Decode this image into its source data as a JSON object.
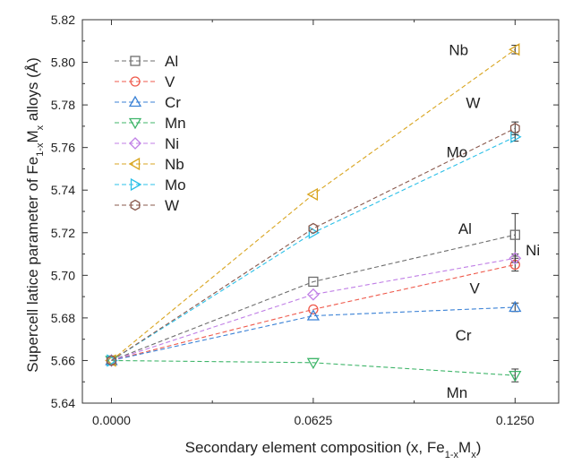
{
  "chart_data": {
    "type": "line",
    "xlabel": "Secondary element composition (x, Fe",
    "xlabel_sub1": "1-x",
    "xlabel_mid": "M",
    "xlabel_sub2": "x",
    "xlabel_end": ")",
    "ylabel": "Supercell latice parameter of Fe",
    "ylabel_sub1": "1-x",
    "ylabel_mid": "M",
    "ylabel_sub2": "x",
    "ylabel_end": " alloys (Å)",
    "x": [
      0.0,
      0.0625,
      0.125
    ],
    "x_tick_labels": [
      "0.0000",
      "0.0625",
      "0.1250"
    ],
    "xlim": [
      -0.009,
      0.1385
    ],
    "ylim": [
      5.64,
      5.82
    ],
    "y_ticks": [
      5.64,
      5.66,
      5.68,
      5.7,
      5.72,
      5.74,
      5.76,
      5.78,
      5.8,
      5.82
    ],
    "y_tick_labels": [
      "5.64",
      "5.66",
      "5.68",
      "5.70",
      "5.72",
      "5.74",
      "5.76",
      "5.78",
      "5.80",
      "5.82"
    ],
    "grid": false,
    "legend_position": "top-left",
    "series": [
      {
        "name": "Al",
        "color": "#6e6e6e",
        "marker": "square",
        "values": [
          5.66,
          5.697,
          5.719
        ],
        "error_last": 0.01
      },
      {
        "name": "V",
        "color": "#ef5a4c",
        "marker": "circle",
        "values": [
          5.66,
          5.684,
          5.705
        ],
        "error_last": 0.003
      },
      {
        "name": "Cr",
        "color": "#3b82d6",
        "marker": "triangle-up",
        "values": [
          5.66,
          5.681,
          5.685
        ],
        "error_last": 0.002
      },
      {
        "name": "Mn",
        "color": "#3fb56a",
        "marker": "triangle-down",
        "values": [
          5.66,
          5.659,
          5.653
        ],
        "error_last": 0.003
      },
      {
        "name": "Ni",
        "color": "#c07fe6",
        "marker": "diamond",
        "values": [
          5.66,
          5.691,
          5.708
        ],
        "error_last": 0.002
      },
      {
        "name": "Nb",
        "color": "#d9a520",
        "marker": "triangle-left",
        "values": [
          5.66,
          5.738,
          5.806
        ],
        "error_last": 0.002
      },
      {
        "name": "Mo",
        "color": "#2cc0e8",
        "marker": "triangle-right",
        "values": [
          5.66,
          5.72,
          5.765
        ],
        "error_last": 0.002
      },
      {
        "name": "W",
        "color": "#8a5a4e",
        "marker": "hexagon",
        "values": [
          5.66,
          5.722,
          5.769
        ],
        "error_last": 0.003
      }
    ],
    "annotations": [
      {
        "text": "Nb",
        "x": 0.1075,
        "y": 5.806
      },
      {
        "text": "W",
        "x": 0.112,
        "y": 5.781
      },
      {
        "text": "Mo",
        "x": 0.107,
        "y": 5.758
      },
      {
        "text": "Al",
        "x": 0.1095,
        "y": 5.722
      },
      {
        "text": "Ni",
        "x": 0.1305,
        "y": 5.712
      },
      {
        "text": "V",
        "x": 0.1125,
        "y": 5.694
      },
      {
        "text": "Cr",
        "x": 0.109,
        "y": 5.672
      },
      {
        "text": "Mn",
        "x": 0.107,
        "y": 5.645
      }
    ]
  }
}
